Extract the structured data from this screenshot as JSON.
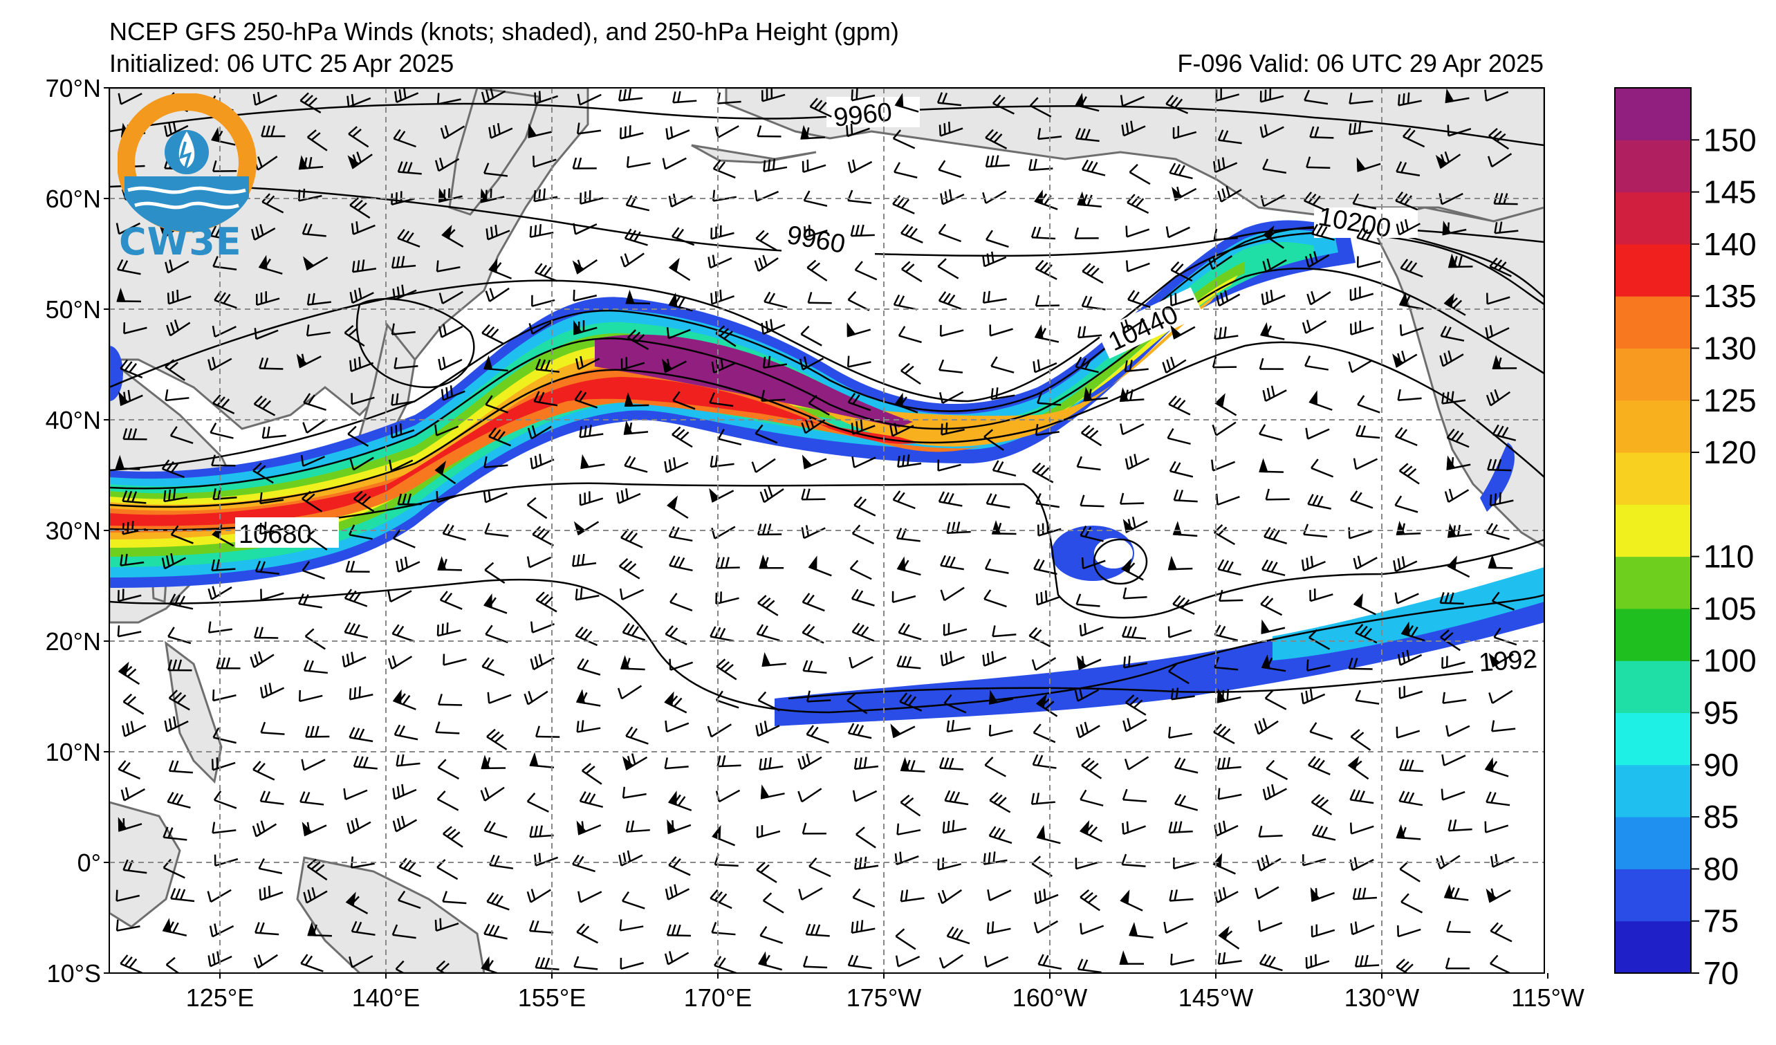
{
  "header": {
    "title": "NCEP GFS 250-hPa Winds (knots; shaded), and 250-hPa Height (gpm)",
    "initialized": "Initialized: 06 UTC 25 Apr 2025",
    "forecast": "F-096  Valid: 06 UTC 29 Apr 2025"
  },
  "logo": {
    "text": "CW3E",
    "colors": {
      "orange": "#f39a1e",
      "blue": "#2d8fc7",
      "dark_blue": "#1d5f8f"
    }
  },
  "map": {
    "lat_labels": [
      "70°N",
      "60°N",
      "50°N",
      "40°N",
      "30°N",
      "20°N",
      "10°N",
      "0°",
      "10°S"
    ],
    "lon_labels": [
      "125°E",
      "140°E",
      "155°E",
      "170°E",
      "175°W",
      "160°W",
      "145°W",
      "130°W",
      "115°W"
    ],
    "lat_range": [
      -10,
      70
    ],
    "lon_range": [
      115,
      245
    ],
    "land_color": "#e6e6e6",
    "coast_color": "#6e6e6e"
  },
  "height_contours": {
    "labels": [
      "9960",
      "9960",
      "10200",
      "10440",
      "10680",
      "1092"
    ]
  },
  "colorbar": {
    "levels": [
      70,
      75,
      80,
      85,
      90,
      95,
      100,
      105,
      110,
      115,
      120,
      125,
      130,
      135,
      140,
      145,
      150,
      155
    ],
    "tick_labels": [
      "70",
      "75",
      "80",
      "85",
      "90",
      "95",
      "100",
      "105",
      "110",
      "120",
      "125",
      "130",
      "135",
      "140",
      "145",
      "150"
    ],
    "colors": [
      "#1f20c8",
      "#2a4de8",
      "#1f8ff0",
      "#1fbff0",
      "#1ff0e6",
      "#1fdfa6",
      "#1fbf1f",
      "#6fcf1f",
      "#f0f01f",
      "#f8d01f",
      "#f8b01f",
      "#f89a1f",
      "#f8781f",
      "#f0201f",
      "#d01f3f",
      "#b01f5f",
      "#901f7f"
    ]
  }
}
